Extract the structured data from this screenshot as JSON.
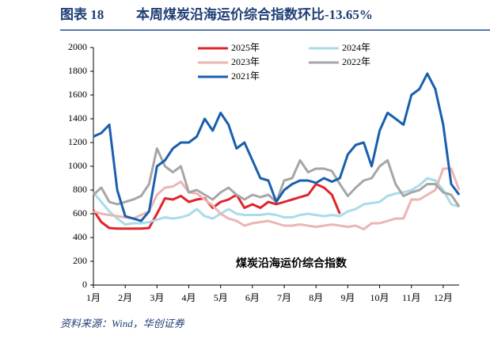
{
  "chart_data": {
    "type": "line",
    "figure_label": "图表 18",
    "title": "本周煤炭沿海运价综合指数环比-13.65%",
    "annotation": "煤炭沿海运价综合指数",
    "source": "资料来源：Wind，华创证券",
    "x": [
      1,
      1.25,
      1.5,
      1.75,
      2,
      2.25,
      2.5,
      2.75,
      3,
      3.25,
      3.5,
      3.75,
      4,
      4.25,
      4.5,
      4.75,
      5,
      5.25,
      5.5,
      5.75,
      6,
      6.25,
      6.5,
      6.75,
      7,
      7.25,
      7.5,
      7.75,
      8,
      8.25,
      8.5,
      8.75,
      9,
      9.25,
      9.5,
      9.75,
      10,
      10.25,
      10.5,
      10.75,
      11,
      11.25,
      11.5,
      11.75,
      12,
      12.25,
      12.5
    ],
    "xlim": [
      1,
      12.5
    ],
    "xticks": [
      {
        "value": 1,
        "label": "1月"
      },
      {
        "value": 2,
        "label": "2月"
      },
      {
        "value": 3,
        "label": "3月"
      },
      {
        "value": 4,
        "label": "4月"
      },
      {
        "value": 5,
        "label": "5月"
      },
      {
        "value": 6,
        "label": "6月"
      },
      {
        "value": 7,
        "label": "7月"
      },
      {
        "value": 8,
        "label": "8月"
      },
      {
        "value": 9,
        "label": "9月"
      },
      {
        "value": 10,
        "label": "10月"
      },
      {
        "value": 11,
        "label": "11月"
      },
      {
        "value": 12,
        "label": "12月"
      }
    ],
    "ylim": [
      0,
      2000
    ],
    "yticks": [
      0,
      200,
      400,
      600,
      800,
      1000,
      1200,
      1400,
      1600,
      1800,
      2000
    ],
    "legend": "top",
    "series": [
      {
        "name": "2025年",
        "color": "#e0242b",
        "values": [
          630,
          530,
          480,
          475,
          475,
          475,
          475,
          480,
          600,
          730,
          720,
          750,
          700,
          720,
          730,
          650,
          700,
          720,
          760,
          650,
          680,
          650,
          700,
          680,
          700,
          720,
          740,
          760,
          850,
          820,
          760,
          600,
          null,
          null,
          null,
          null,
          null,
          null,
          null,
          null,
          null,
          null,
          null,
          null,
          null,
          null,
          null
        ]
      },
      {
        "name": "2024年",
        "color": "#a8dce8",
        "values": [
          780,
          700,
          620,
          560,
          510,
          520,
          520,
          530,
          550,
          570,
          560,
          570,
          590,
          640,
          580,
          560,
          600,
          640,
          600,
          590,
          590,
          590,
          600,
          590,
          570,
          570,
          590,
          600,
          590,
          580,
          590,
          580,
          620,
          640,
          680,
          690,
          700,
          750,
          770,
          780,
          800,
          840,
          900,
          880,
          800,
          680,
          660
        ]
      },
      {
        "name": "2023年",
        "color": "#eab5b5",
        "values": [
          620,
          600,
          590,
          580,
          570,
          560,
          590,
          620,
          760,
          820,
          830,
          870,
          780,
          770,
          720,
          670,
          600,
          560,
          540,
          500,
          520,
          530,
          540,
          520,
          500,
          500,
          510,
          500,
          490,
          500,
          510,
          500,
          490,
          500,
          470,
          520,
          520,
          540,
          560,
          560,
          720,
          720,
          760,
          800,
          980,
          980,
          800
        ]
      },
      {
        "name": "2022年",
        "color": "#a6a6a6",
        "values": [
          760,
          820,
          700,
          680,
          700,
          720,
          750,
          850,
          1150,
          1000,
          950,
          1000,
          780,
          800,
          760,
          720,
          780,
          820,
          760,
          720,
          760,
          740,
          760,
          700,
          880,
          900,
          1050,
          950,
          980,
          980,
          960,
          850,
          750,
          820,
          880,
          900,
          1000,
          1050,
          850,
          750,
          780,
          800,
          850,
          850,
          780,
          760,
          660
        ]
      },
      {
        "name": "2021年",
        "color": "#1a5fad",
        "values": [
          1250,
          1280,
          1350,
          800,
          580,
          560,
          540,
          620,
          1000,
          1050,
          1150,
          1200,
          1200,
          1250,
          1400,
          1300,
          1450,
          1350,
          1150,
          1200,
          1050,
          900,
          880,
          700,
          800,
          850,
          880,
          880,
          860,
          900,
          870,
          900,
          1100,
          1180,
          1200,
          1000,
          1300,
          1450,
          1400,
          1350,
          1600,
          1650,
          1780,
          1650,
          1350,
          850,
          760
        ]
      }
    ]
  }
}
